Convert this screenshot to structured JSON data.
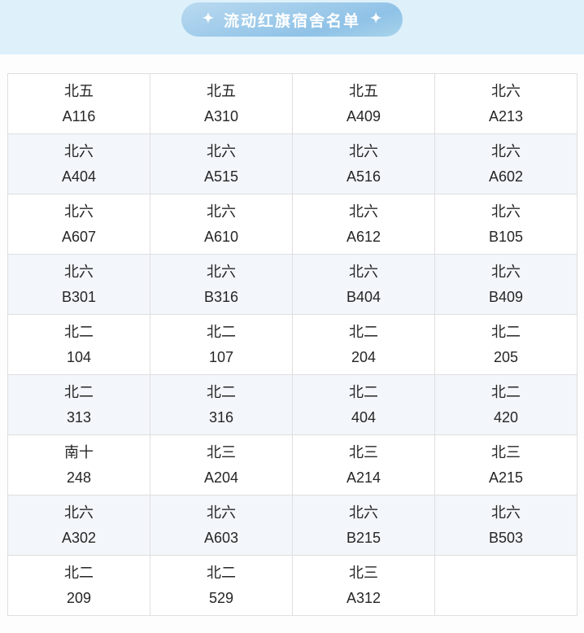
{
  "header": {
    "title": "流动红旗宿舍名单",
    "sparkle": "✦"
  },
  "colors": {
    "page_bg": "#fdfdfd",
    "banner_bg": "#def1fb",
    "badge_gradient_top": "#badaf0",
    "badge_gradient_bottom": "#8fc2e7",
    "badge_text": "#ffffff",
    "row_bg": "#ffffff",
    "row_alt_bg": "#f3f6fa",
    "table_border": "#dfdfdf",
    "cell_text": "#262626"
  },
  "table": {
    "columns": 4,
    "rows": [
      [
        {
          "building": "北五",
          "room": "A116"
        },
        {
          "building": "北五",
          "room": "A310"
        },
        {
          "building": "北五",
          "room": "A409"
        },
        {
          "building": "北六",
          "room": "A213"
        }
      ],
      [
        {
          "building": "北六",
          "room": "A404"
        },
        {
          "building": "北六",
          "room": "A515"
        },
        {
          "building": "北六",
          "room": "A516"
        },
        {
          "building": "北六",
          "room": "A602"
        }
      ],
      [
        {
          "building": "北六",
          "room": "A607"
        },
        {
          "building": "北六",
          "room": "A610"
        },
        {
          "building": "北六",
          "room": "A612"
        },
        {
          "building": "北六",
          "room": "B105"
        }
      ],
      [
        {
          "building": "北六",
          "room": "B301"
        },
        {
          "building": "北六",
          "room": "B316"
        },
        {
          "building": "北六",
          "room": "B404"
        },
        {
          "building": "北六",
          "room": "B409"
        }
      ],
      [
        {
          "building": "北二",
          "room": "104"
        },
        {
          "building": "北二",
          "room": "107"
        },
        {
          "building": "北二",
          "room": "204"
        },
        {
          "building": "北二",
          "room": "205"
        }
      ],
      [
        {
          "building": "北二",
          "room": "313"
        },
        {
          "building": "北二",
          "room": "316"
        },
        {
          "building": "北二",
          "room": "404"
        },
        {
          "building": "北二",
          "room": "420"
        }
      ],
      [
        {
          "building": "南十",
          "room": "248"
        },
        {
          "building": "北三",
          "room": "A204"
        },
        {
          "building": "北三",
          "room": "A214"
        },
        {
          "building": "北三",
          "room": "A215"
        }
      ],
      [
        {
          "building": "北六",
          "room": "A302"
        },
        {
          "building": "北六",
          "room": "A603"
        },
        {
          "building": "北六",
          "room": "B215"
        },
        {
          "building": "北六",
          "room": "B503"
        }
      ],
      [
        {
          "building": "北二",
          "room": "209"
        },
        {
          "building": "北二",
          "room": "529"
        },
        {
          "building": "北三",
          "room": "A312"
        },
        {
          "building": "",
          "room": ""
        }
      ]
    ]
  }
}
